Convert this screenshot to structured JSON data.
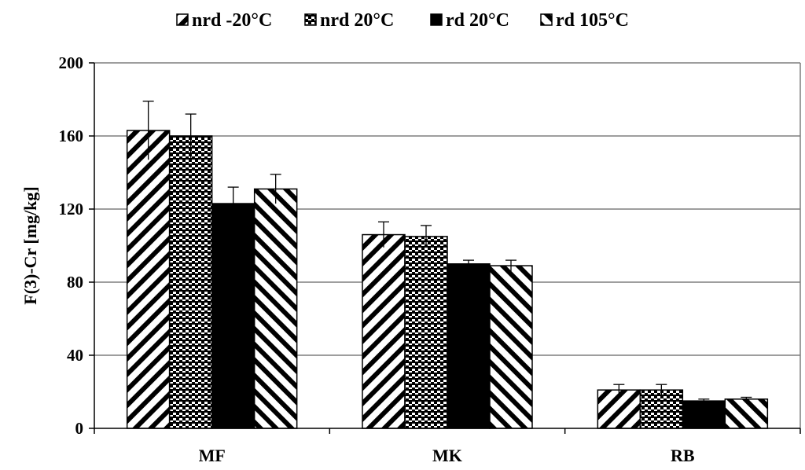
{
  "chart_data": {
    "type": "bar",
    "title": "",
    "xlabel": "",
    "ylabel": "F(3)-Cr [mg/kg]",
    "categories": [
      "MF",
      "MK",
      "RB"
    ],
    "ylim": [
      0,
      200
    ],
    "yticks": [
      "0",
      "40",
      "80",
      "120",
      "160",
      "200"
    ],
    "grid": true,
    "legend_position": "top",
    "series": [
      {
        "name": "nrd -20°C",
        "pattern": "diagonal-up",
        "values": [
          163,
          106,
          21
        ],
        "errors": [
          16,
          7,
          3
        ]
      },
      {
        "name": "nrd 20°C",
        "pattern": "checker",
        "values": [
          160,
          105,
          21
        ],
        "errors": [
          12,
          6,
          3
        ]
      },
      {
        "name": "rd 20°C",
        "pattern": "solid",
        "values": [
          123,
          90,
          15
        ],
        "errors": [
          9,
          2,
          1
        ]
      },
      {
        "name": "rd 105°C",
        "pattern": "diagonal-down",
        "values": [
          131,
          89,
          16
        ],
        "errors": [
          8,
          3,
          1
        ]
      }
    ]
  }
}
